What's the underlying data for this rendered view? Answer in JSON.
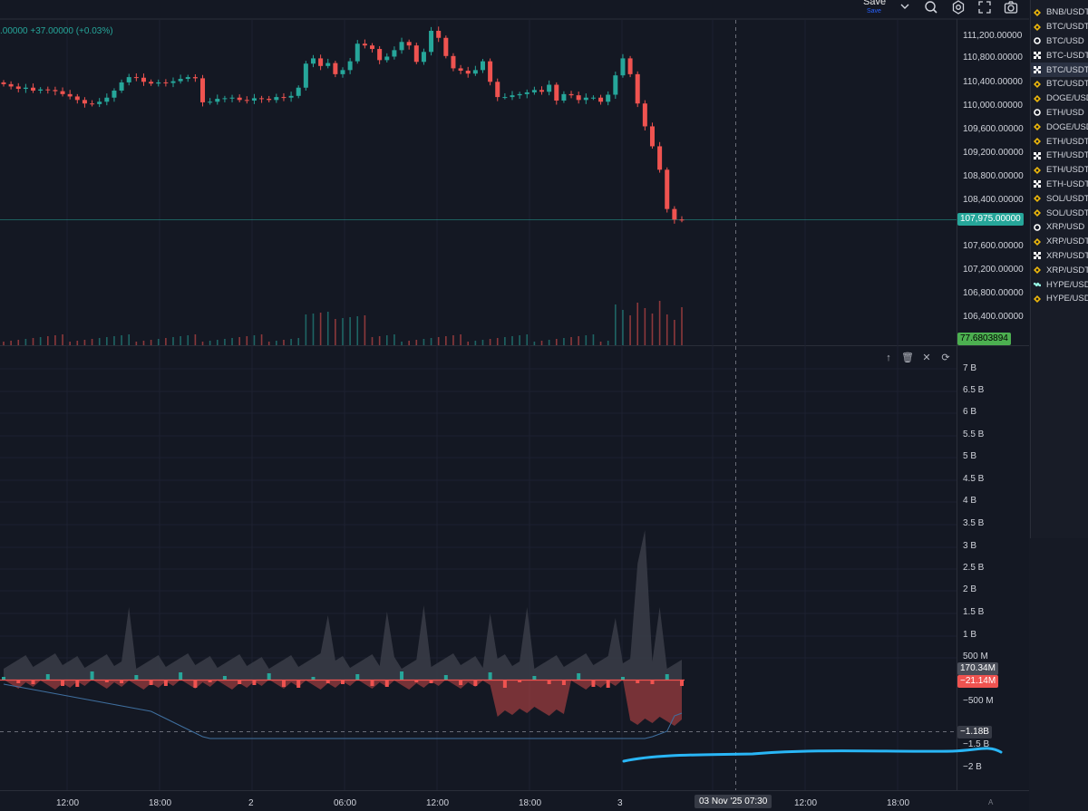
{
  "toolbar": {
    "save_label": "Save",
    "save_sub": "Save",
    "icons": [
      "chevron-down-icon",
      "search-icon",
      "settings-icon",
      "fullscreen-icon",
      "camera-icon"
    ]
  },
  "legend": {
    "change": ".00000 +37.00000 (+0.03%)"
  },
  "price_axis": {
    "labels": [
      "111,200.00000",
      "110,800.00000",
      "110,400.00000",
      "110,000.00000",
      "109,600.00000",
      "109,200.00000",
      "108,800.00000",
      "108,400.00000",
      "107,600.00000",
      "107,200.00000",
      "106,800.00000",
      "106,400.00000"
    ],
    "current_price": "107,975.00000",
    "volume_tag": "77.6803894",
    "current_color": "#26a69a",
    "volume_color": "#4caf50"
  },
  "indicator_axis": {
    "labels": [
      "7 B",
      "6.5 B",
      "6 B",
      "5.5 B",
      "5 B",
      "4.5 B",
      "4 B",
      "3.5 B",
      "3 B",
      "2.5 B",
      "2 B",
      "1.5 B",
      "1 B",
      "500 M",
      "−500 M",
      "−1.5 B",
      "−2 B"
    ],
    "tag_pos": "170.34M",
    "tag_neg": "−21.14M",
    "tag_cum": "−1.18B"
  },
  "pane_tools": [
    "arrow-up-icon",
    "trash-icon",
    "close-icon",
    "maximize-icon"
  ],
  "time_axis": {
    "labels": [
      "12:00",
      "18:00",
      "2",
      "06:00",
      "12:00",
      "18:00",
      "3",
      "12:00",
      "18:00"
    ],
    "cursor": "03 Nov '25  07:30",
    "auto": "A"
  },
  "watchlist": [
    {
      "symbol": "BNB/USDT",
      "icon": "binance-icon"
    },
    {
      "symbol": "BTC/USDT",
      "icon": "binance-icon"
    },
    {
      "symbol": "BTC/USD",
      "icon": "circle-icon"
    },
    {
      "symbol": "BTC-USDT-S",
      "icon": "okx-icon"
    },
    {
      "symbol": "BTC/USDT",
      "icon": "okx-icon",
      "selected": true
    },
    {
      "symbol": "BTC/USDT",
      "icon": "binance-icon"
    },
    {
      "symbol": "DOGE/USDT",
      "icon": "binance-icon"
    },
    {
      "symbol": "ETH/USD",
      "icon": "circle-icon"
    },
    {
      "symbol": "DOGE/USDT",
      "icon": "binance-icon"
    },
    {
      "symbol": "ETH/USDT",
      "icon": "binance-icon"
    },
    {
      "symbol": "ETH/USDT",
      "icon": "okx-icon"
    },
    {
      "symbol": "ETH/USDT",
      "icon": "binance-icon"
    },
    {
      "symbol": "ETH-USDT-S",
      "icon": "okx-icon"
    },
    {
      "symbol": "SOL/USDT",
      "icon": "binance-icon"
    },
    {
      "symbol": "SOL/USDT",
      "icon": "binance-icon"
    },
    {
      "symbol": "XRP/USD",
      "icon": "circle-icon"
    },
    {
      "symbol": "XRP/USDT",
      "icon": "binance-icon"
    },
    {
      "symbol": "XRP/USDT",
      "icon": "okx-icon"
    },
    {
      "symbol": "XRP/USDT",
      "icon": "binance-icon"
    },
    {
      "symbol": "HYPE/USDC",
      "icon": "hyperliquid-icon"
    },
    {
      "symbol": "HYPE/USDT",
      "icon": "binance-icon"
    }
  ],
  "colors": {
    "up": "#26a69a",
    "down": "#ef5350",
    "bg": "#141823",
    "annotation": "#29b6f6"
  },
  "chart_data": {
    "type": "candlestick",
    "price_candles_close": [
      110290,
      110250,
      110210,
      110230,
      110180,
      110200,
      110190,
      110170,
      110120,
      110080,
      110020,
      109960,
      109950,
      109990,
      110060,
      110180,
      110320,
      110410,
      110400,
      110330,
      110300,
      110320,
      110310,
      110340,
      110380,
      110410,
      110390,
      109980,
      109990,
      110040,
      110050,
      110060,
      110020,
      110010,
      110050,
      110040,
      110020,
      110070,
      110060,
      110090,
      110230,
      110640,
      110730,
      110600,
      110650,
      110460,
      110530,
      110680,
      110980,
      110950,
      110890,
      110700,
      110760,
      110870,
      111010,
      110950,
      110670,
      110840,
      111200,
      111080,
      110770,
      110560,
      110520,
      110470,
      110530,
      110680,
      110330,
      110070,
      110070,
      110100,
      110120,
      110150,
      110190,
      110160,
      110280,
      110010,
      110120,
      110100,
      110020,
      110060,
      110060,
      109990,
      110110,
      110440,
      110730,
      110460,
      109960,
      109570,
      109230,
      108830,
      108160,
      107980,
      107975
    ]
  }
}
